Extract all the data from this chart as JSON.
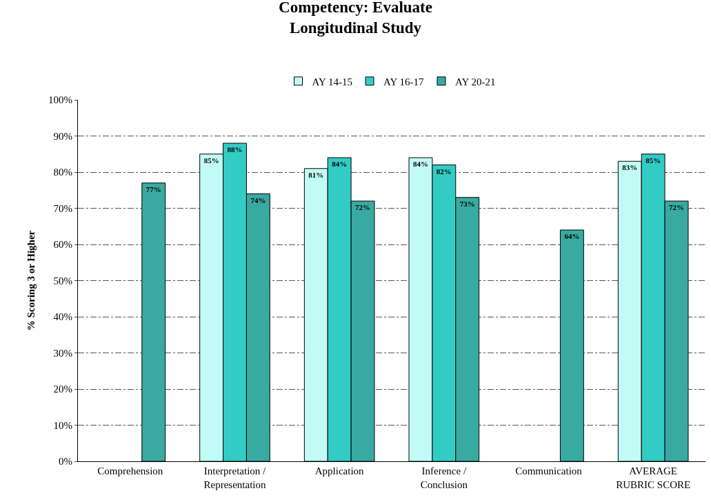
{
  "chart_data": {
    "type": "bar",
    "title": "Competency: Evaluate Longitudinal Study",
    "ylabel": "% Scoring 3 or Higher",
    "categories": [
      "Comprehension",
      "Interpretation / Representation",
      "Application",
      "Inference / Conclusion",
      "Communication",
      "AVERAGE RUBRIC SCORE"
    ],
    "series": [
      {
        "name": "AY 14-15",
        "color": "#c2fbf6",
        "values": [
          null,
          85,
          81,
          84,
          null,
          83
        ],
        "value_labels": [
          null,
          "85%",
          "81%",
          "84%",
          null,
          "83%"
        ]
      },
      {
        "name": "AY 16-17",
        "color": "#33ccc4",
        "values": [
          null,
          88,
          84,
          82,
          null,
          85
        ],
        "value_labels": [
          null,
          "88%",
          "84%",
          "82%",
          null,
          "85%"
        ]
      },
      {
        "name": "AY 20-21",
        "color": "#38aaa2",
        "values": [
          77,
          74,
          72,
          73,
          64,
          72
        ],
        "value_labels": [
          "77%",
          "74%",
          "72%",
          "73%",
          "64%",
          "72%"
        ]
      }
    ],
    "ylim": [
      0,
      100
    ],
    "yticks": [
      {
        "value": 0,
        "label": "0%"
      },
      {
        "value": 10,
        "label": "10%"
      },
      {
        "value": 20,
        "label": "20%"
      },
      {
        "value": 30,
        "label": "30%"
      },
      {
        "value": 40,
        "label": "40%"
      },
      {
        "value": 50,
        "label": "50%"
      },
      {
        "value": 60,
        "label": "60%"
      },
      {
        "value": 70,
        "label": "70%"
      },
      {
        "value": 80,
        "label": "80%"
      },
      {
        "value": 90,
        "label": "90%"
      },
      {
        "value": 100,
        "label": "100%"
      }
    ],
    "grid": "y",
    "legend": "top"
  }
}
